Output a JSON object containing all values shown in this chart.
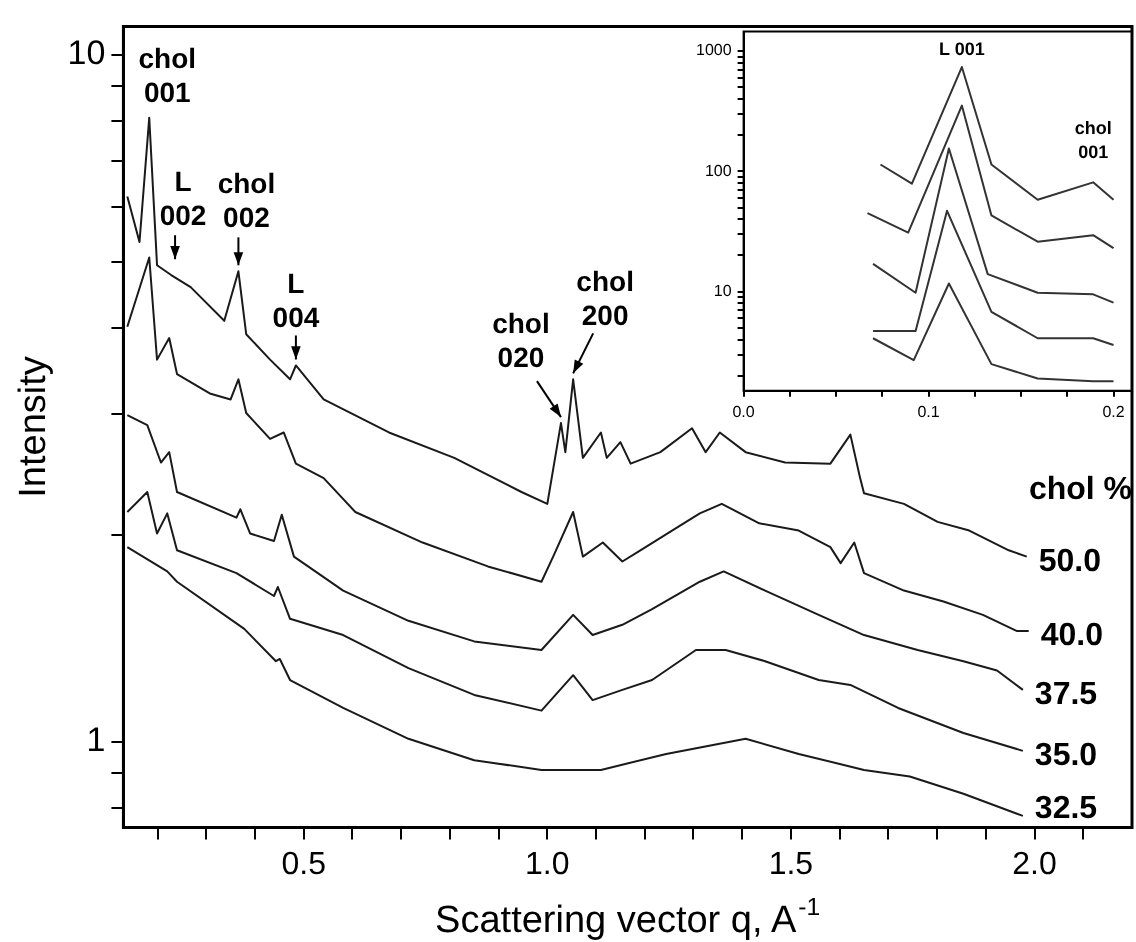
{
  "chart_data": [
    {
      "type": "line",
      "xlabel": "Scattering vector q, A$^{-1}$",
      "ylabel": "Intensity",
      "legend_title": "chol %",
      "log": true,
      "legend": false,
      "marker": "none",
      "xlim": [
        0.13,
        2.2
      ],
      "xticks": [
        {
          "value": 0.2,
          "label": null
        },
        {
          "value": 0.3,
          "label": null
        },
        {
          "value": 0.4,
          "label": null
        },
        0.5,
        {
          "value": 0.6,
          "label": null
        },
        {
          "value": 0.7,
          "label": null
        },
        {
          "value": 0.8,
          "label": null
        },
        {
          "value": 0.9,
          "label": null
        },
        {
          "value": 1,
          "label": "1.0"
        },
        {
          "value": 1.1,
          "label": null
        },
        {
          "value": 1.2,
          "label": null
        },
        {
          "value": 1.3,
          "label": null
        },
        {
          "value": 1.4,
          "label": null
        },
        1.5,
        {
          "value": 1.6,
          "label": null
        },
        {
          "value": 1.7,
          "label": null
        },
        {
          "value": 1.8,
          "label": null
        },
        {
          "value": 1.9,
          "label": null
        },
        {
          "value": 2,
          "label": "2.0"
        },
        {
          "value": 2.1,
          "label": null
        }
      ],
      "ylim": [
        0.75,
        11
      ],
      "yticks": [
        {
          "value": 0.8,
          "label": null
        },
        {
          "value": 0.9,
          "label": null
        },
        1,
        {
          "value": 2,
          "label": null
        },
        {
          "value": 3,
          "label": null
        },
        {
          "value": 4,
          "label": null
        },
        {
          "value": 5,
          "label": null
        },
        {
          "value": 6,
          "label": null
        },
        {
          "value": 7,
          "label": null
        },
        {
          "value": 8,
          "label": null
        },
        {
          "value": 9,
          "label": null
        },
        10
      ],
      "series": [
        {
          "name": "50.0",
          "color": "#1a1a1a",
          "x": [
            0.138,
            0.163,
            0.183,
            0.199,
            0.228,
            0.268,
            0.337,
            0.366,
            0.382,
            0.431,
            0.472,
            0.484,
            0.541,
            0.675,
            0.809,
            0.947,
            1.0,
            1.028,
            1.037,
            1.053,
            1.073,
            1.11,
            1.122,
            1.15,
            1.171,
            1.232,
            1.297,
            1.325,
            1.354,
            1.407,
            1.488,
            1.581,
            1.622,
            1.642,
            1.65,
            1.732,
            1.801,
            1.866,
            1.947,
            1.984
          ],
          "values": [
            6.22,
            5.34,
            8.1,
            4.94,
            4.78,
            4.59,
            4.1,
            4.84,
            3.92,
            3.6,
            3.37,
            3.53,
            3.15,
            2.82,
            2.59,
            2.31,
            2.22,
            2.91,
            2.64,
            3.37,
            2.59,
            2.82,
            2.59,
            2.73,
            2.54,
            2.64,
            2.86,
            2.64,
            2.82,
            2.64,
            2.55,
            2.54,
            2.8,
            2.42,
            2.3,
            2.22,
            2.09,
            2.03,
            1.9,
            1.86
          ]
        },
        {
          "name": "40.0",
          "color": "#1a1a1a",
          "x": [
            0.138,
            0.183,
            0.199,
            0.224,
            0.24,
            0.309,
            0.35,
            0.366,
            0.382,
            0.431,
            0.459,
            0.484,
            0.541,
            0.606,
            0.744,
            0.878,
            0.988,
            1.012,
            1.053,
            1.073,
            1.114,
            1.154,
            1.191,
            1.256,
            1.313,
            1.358,
            1.435,
            1.516,
            1.581,
            1.602,
            1.63,
            1.65,
            1.732,
            1.813,
            1.894,
            1.963,
            1.988
          ],
          "values": [
            4.02,
            5.07,
            3.6,
            3.87,
            3.43,
            3.21,
            3.15,
            3.37,
            3.01,
            2.76,
            2.82,
            2.54,
            2.42,
            2.16,
            1.95,
            1.8,
            1.71,
            1.86,
            2.16,
            1.86,
            1.95,
            1.83,
            1.9,
            2.03,
            2.15,
            2.22,
            2.08,
            2.03,
            1.92,
            1.82,
            1.95,
            1.76,
            1.66,
            1.6,
            1.53,
            1.45,
            1.45
          ]
        },
        {
          "name": "37.5",
          "color": "#1a1a1a",
          "x": [
            0.138,
            0.179,
            0.207,
            0.224,
            0.24,
            0.362,
            0.37,
            0.39,
            0.439,
            0.455,
            0.48,
            0.581,
            0.715,
            0.85,
            0.988,
            1.053,
            1.093,
            1.154,
            1.215,
            1.313,
            1.362,
            1.447,
            1.557,
            1.65,
            1.76,
            1.854,
            1.923,
            1.976
          ],
          "values": [
            2.99,
            2.89,
            2.55,
            2.64,
            2.31,
            2.12,
            2.18,
            2.01,
            1.96,
            2.14,
            1.86,
            1.66,
            1.5,
            1.4,
            1.36,
            1.53,
            1.43,
            1.48,
            1.56,
            1.71,
            1.77,
            1.66,
            1.53,
            1.43,
            1.36,
            1.31,
            1.27,
            1.19
          ]
        },
        {
          "name": "35.0",
          "color": "#1a1a1a",
          "x": [
            0.138,
            0.179,
            0.199,
            0.22,
            0.24,
            0.362,
            0.439,
            0.447,
            0.472,
            0.581,
            0.715,
            0.85,
            0.988,
            1.053,
            1.093,
            1.154,
            1.215,
            1.305,
            1.366,
            1.447,
            1.557,
            1.622,
            1.72,
            1.854,
            1.976
          ],
          "values": [
            2.16,
            2.31,
            2.01,
            2.15,
            1.9,
            1.76,
            1.63,
            1.68,
            1.51,
            1.43,
            1.28,
            1.17,
            1.11,
            1.25,
            1.15,
            1.19,
            1.23,
            1.36,
            1.36,
            1.31,
            1.23,
            1.21,
            1.12,
            1.03,
            0.97
          ]
        },
        {
          "name": "32.5",
          "color": "#1a1a1a",
          "x": [
            0.138,
            0.22,
            0.24,
            0.378,
            0.443,
            0.451,
            0.472,
            0.581,
            0.715,
            0.85,
            0.988,
            1.11,
            1.244,
            1.407,
            1.516,
            1.65,
            1.744,
            1.854,
            1.976
          ],
          "values": [
            1.92,
            1.77,
            1.71,
            1.46,
            1.31,
            1.32,
            1.23,
            1.12,
            1.01,
            0.94,
            0.91,
            0.91,
            0.96,
            1.01,
            0.96,
            0.91,
            0.89,
            0.84,
            0.78
          ]
        }
      ],
      "annotations": [
        {
          "text": "chol\n001",
          "x": 0.183,
          "y": 8.1
        },
        {
          "text": "L\n002",
          "x": 0.236,
          "y": 4.94
        },
        {
          "text": "chol\n002",
          "x": 0.366,
          "y": 4.84
        },
        {
          "text": "L\n004",
          "x": 0.484,
          "y": 3.53
        },
        {
          "text": "chol\n020",
          "x": 1.028,
          "y": 2.91
        },
        {
          "text": "chol\n200",
          "x": 1.053,
          "y": 3.37
        }
      ]
    },
    {
      "type": "line",
      "log": true,
      "legend": false,
      "marker": "none",
      "xlim": [
        0,
        0.21
      ],
      "xticks": [
        {
          "value": 0,
          "label": "0.0"
        },
        {
          "value": 0.025,
          "label": null
        },
        {
          "value": 0.05,
          "label": null
        },
        {
          "value": 0.075,
          "label": null
        },
        0.1,
        {
          "value": 0.125,
          "label": null
        },
        {
          "value": 0.15,
          "label": null
        },
        {
          "value": 0.175,
          "label": null
        },
        0.2
      ],
      "ylim": [
        1.5,
        1450
      ],
      "yticks": [
        {
          "value": 2,
          "label": null
        },
        {
          "value": 3,
          "label": null
        },
        {
          "value": 4,
          "label": null
        },
        {
          "value": 5,
          "label": null
        },
        {
          "value": 6,
          "label": null
        },
        {
          "value": 7,
          "label": null
        },
        {
          "value": 8,
          "label": null
        },
        {
          "value": 9,
          "label": null
        },
        10,
        {
          "value": 20,
          "label": null
        },
        {
          "value": 30,
          "label": null
        },
        {
          "value": 40,
          "label": null
        },
        {
          "value": 50,
          "label": null
        },
        {
          "value": 60,
          "label": null
        },
        {
          "value": 70,
          "label": null
        },
        {
          "value": 80,
          "label": null
        },
        {
          "value": 90,
          "label": null
        },
        100,
        {
          "value": 200,
          "label": null
        },
        {
          "value": 300,
          "label": null
        },
        {
          "value": 400,
          "label": null
        },
        {
          "value": 500,
          "label": null
        },
        {
          "value": 600,
          "label": null
        },
        {
          "value": 700,
          "label": null
        },
        {
          "value": 800,
          "label": null
        },
        {
          "value": 900,
          "label": null
        },
        1000
      ],
      "series": [
        {
          "color": "#333333",
          "x": [
            0.074,
            0.091,
            0.118,
            0.134,
            0.159,
            0.189,
            0.2
          ],
          "values": [
            114,
            79,
            736,
            114,
            58,
            81,
            58
          ]
        },
        {
          "color": "#333333",
          "x": [
            0.067,
            0.089,
            0.118,
            0.134,
            0.159,
            0.189,
            0.2
          ],
          "values": [
            45,
            31,
            352,
            43,
            26,
            29.5,
            23
          ]
        },
        {
          "color": "#333333",
          "x": [
            0.07,
            0.093,
            0.111,
            0.132,
            0.159,
            0.189,
            0.2
          ],
          "values": [
            17,
            9.8,
            155,
            14,
            9.8,
            9.5,
            8.1
          ]
        },
        {
          "color": "#333333",
          "x": [
            0.07,
            0.093,
            0.11,
            0.134,
            0.159,
            0.189,
            0.2
          ],
          "values": [
            4.7,
            4.7,
            47,
            6.8,
            4.1,
            4.1,
            3.6
          ]
        },
        {
          "color": "#333333",
          "x": [
            0.07,
            0.092,
            0.111,
            0.134,
            0.159,
            0.189,
            0.2
          ],
          "values": [
            4.1,
            2.7,
            11.7,
            2.5,
            1.9,
            1.8,
            1.8
          ]
        }
      ],
      "annotations": [
        {
          "text": "L 001",
          "x": 0.118,
          "y": 736
        },
        {
          "text": "chol\n001",
          "x": 0.189,
          "y": 81
        }
      ]
    }
  ]
}
